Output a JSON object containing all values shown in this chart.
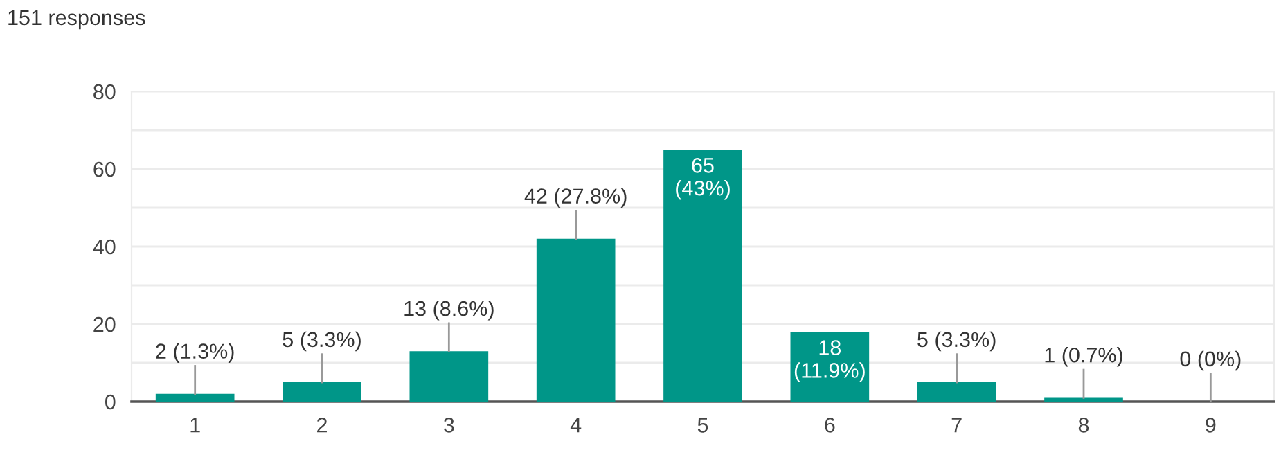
{
  "chart_data": {
    "type": "bar",
    "subtitle": "151 responses",
    "categories": [
      "1",
      "2",
      "3",
      "4",
      "5",
      "6",
      "7",
      "8",
      "9"
    ],
    "values": [
      2,
      5,
      13,
      42,
      65,
      18,
      5,
      1,
      0
    ],
    "value_labels": [
      "2 (1.3%)",
      "5 (3.3%)",
      "13 (8.6%)",
      "42 (27.8%)",
      "65\n(43%)",
      "18\n(11.9%)",
      "5 (3.3%)",
      "1 (0.7%)",
      "0 (0%)"
    ],
    "color": "#009688",
    "ylim": [
      0,
      80
    ],
    "yticks": [
      0,
      {
        "value": 10,
        "label": null
      },
      20,
      {
        "value": 30,
        "label": null
      },
      40,
      {
        "value": 50,
        "label": null
      },
      60,
      {
        "value": 70,
        "label": null
      },
      80
    ],
    "grid": "y",
    "legend": false
  }
}
